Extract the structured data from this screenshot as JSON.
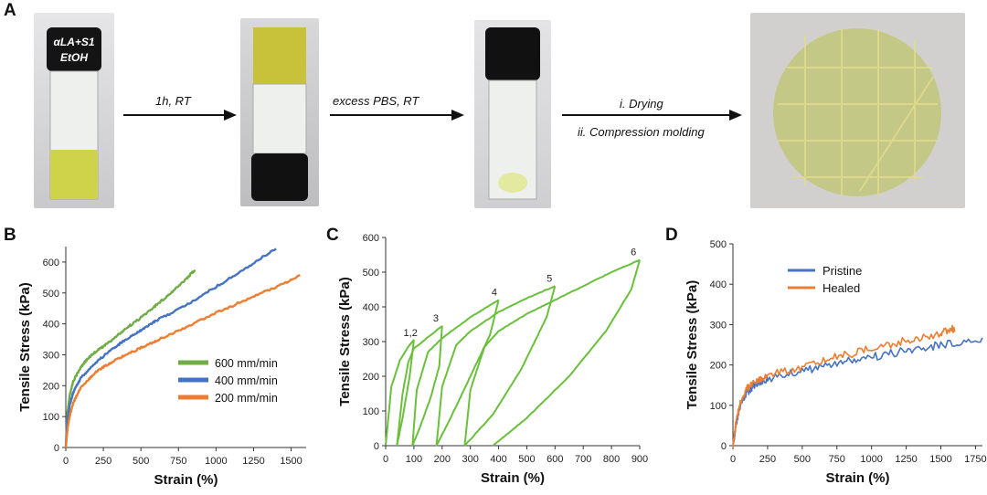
{
  "panel_a": {
    "letter": "A",
    "vial_label_line1": "αLA+S1",
    "vial_label_line2": "EtOH",
    "steps": [
      {
        "line1": "1h, RT",
        "line2": ""
      },
      {
        "line1": "excess PBS, RT",
        "line2": ""
      },
      {
        "line1": "i. Drying",
        "line2": "ii. Compression molding"
      }
    ]
  },
  "colors": {
    "green": "#70ad47",
    "blue": "#4472c4",
    "orange": "#ed7d31",
    "bright_green": "#6abf3c"
  },
  "chart_data": [
    {
      "panel": "B",
      "type": "line",
      "xlabel": "Strain (%)",
      "ylabel": "Tensile Stress (kPa)",
      "xlim": [
        0,
        1600
      ],
      "ylim": [
        0,
        650
      ],
      "xticks": [
        0,
        250,
        500,
        750,
        1000,
        1250,
        1500
      ],
      "yticks": [
        0,
        100,
        200,
        300,
        400,
        500,
        600
      ],
      "legend_position": "bottom-right",
      "series": [
        {
          "name": "600 mm/min",
          "color": "#70ad47",
          "x": [
            0,
            10,
            25,
            50,
            100,
            150,
            200,
            300,
            400,
            500,
            600,
            700,
            800,
            860
          ],
          "y": [
            0,
            110,
            165,
            215,
            260,
            290,
            310,
            345,
            385,
            420,
            460,
            500,
            545,
            575
          ]
        },
        {
          "name": "400 mm/min",
          "color": "#4472c4",
          "x": [
            0,
            10,
            25,
            50,
            100,
            200,
            300,
            400,
            500,
            600,
            800,
            1000,
            1200,
            1400
          ],
          "y": [
            0,
            85,
            135,
            180,
            225,
            275,
            315,
            350,
            380,
            410,
            460,
            520,
            580,
            645
          ]
        },
        {
          "name": "200 mm/min",
          "color": "#ed7d31",
          "x": [
            0,
            10,
            25,
            50,
            100,
            200,
            300,
            400,
            500,
            600,
            800,
            1000,
            1200,
            1400,
            1560
          ],
          "y": [
            0,
            55,
            100,
            145,
            195,
            245,
            275,
            300,
            322,
            345,
            390,
            435,
            478,
            520,
            555
          ]
        }
      ]
    },
    {
      "panel": "C",
      "type": "line",
      "xlabel": "Strain (%)",
      "ylabel": "Tensile Stress (kPa)",
      "xlim": [
        0,
        900
      ],
      "ylim": [
        0,
        600
      ],
      "xticks": [
        0,
        100,
        200,
        300,
        400,
        500,
        600,
        700,
        800,
        900
      ],
      "yticks": [
        0,
        100,
        200,
        300,
        400,
        500,
        600
      ],
      "annotations": [
        {
          "text": "1,2",
          "x": 88,
          "y": 305
        },
        {
          "text": "3",
          "x": 178,
          "y": 348
        },
        {
          "text": "4",
          "x": 385,
          "y": 422
        },
        {
          "text": "5",
          "x": 580,
          "y": 462
        },
        {
          "text": "6",
          "x": 878,
          "y": 538
        }
      ],
      "cycles": [
        {
          "load_x": [
            0,
            20,
            50,
            80,
            100
          ],
          "load_y": [
            0,
            170,
            245,
            285,
            305
          ],
          "unload_x": [
            100,
            85,
            60,
            40
          ],
          "unload_y": [
            305,
            200,
            80,
            0
          ]
        },
        {
          "load_x": [
            40,
            60,
            80,
            100,
            200
          ],
          "load_y": [
            0,
            150,
            240,
            280,
            345
          ],
          "unload_x": [
            200,
            190,
            160,
            120,
            95
          ],
          "unload_y": [
            345,
            230,
            140,
            50,
            0
          ]
        },
        {
          "load_x": [
            95,
            110,
            150,
            200,
            300,
            400
          ],
          "load_y": [
            0,
            160,
            270,
            310,
            370,
            420
          ],
          "unload_x": [
            400,
            370,
            300,
            230,
            180
          ],
          "unload_y": [
            420,
            320,
            200,
            80,
            0
          ]
        },
        {
          "load_x": [
            180,
            200,
            250,
            300,
            400,
            500,
            600
          ],
          "load_y": [
            0,
            170,
            290,
            330,
            385,
            425,
            460
          ],
          "unload_x": [
            600,
            570,
            480,
            380,
            280
          ],
          "unload_y": [
            460,
            370,
            220,
            90,
            0
          ]
        },
        {
          "load_x": [
            280,
            300,
            350,
            400,
            500,
            600,
            700,
            800,
            900
          ],
          "load_y": [
            0,
            160,
            285,
            330,
            380,
            420,
            460,
            500,
            535
          ],
          "unload_x": [
            900,
            870,
            780,
            650,
            500,
            380
          ],
          "unload_y": [
            535,
            450,
            330,
            200,
            80,
            0
          ]
        }
      ]
    },
    {
      "panel": "D",
      "type": "line",
      "xlabel": "Strain (%)",
      "ylabel": "Tensile Stress (kPa)",
      "xlim": [
        0,
        1800
      ],
      "ylim": [
        0,
        500
      ],
      "xticks": [
        0,
        250,
        500,
        750,
        1000,
        1250,
        1500,
        1750
      ],
      "yticks": [
        0,
        100,
        200,
        300,
        400,
        500
      ],
      "legend_position": "top-left",
      "series": [
        {
          "name": "Pristine",
          "color": "#4472c4",
          "x": [
            0,
            25,
            50,
            100,
            150,
            250,
            500,
            750,
            1000,
            1250,
            1500,
            1800
          ],
          "y": [
            0,
            60,
            95,
            130,
            150,
            165,
            185,
            205,
            220,
            235,
            250,
            265
          ]
        },
        {
          "name": "Healed",
          "color": "#ed7d31",
          "x": [
            0,
            25,
            50,
            100,
            150,
            250,
            500,
            750,
            1000,
            1250,
            1500,
            1600
          ],
          "y": [
            0,
            65,
            100,
            140,
            160,
            175,
            195,
            220,
            240,
            260,
            280,
            290
          ]
        }
      ]
    }
  ]
}
